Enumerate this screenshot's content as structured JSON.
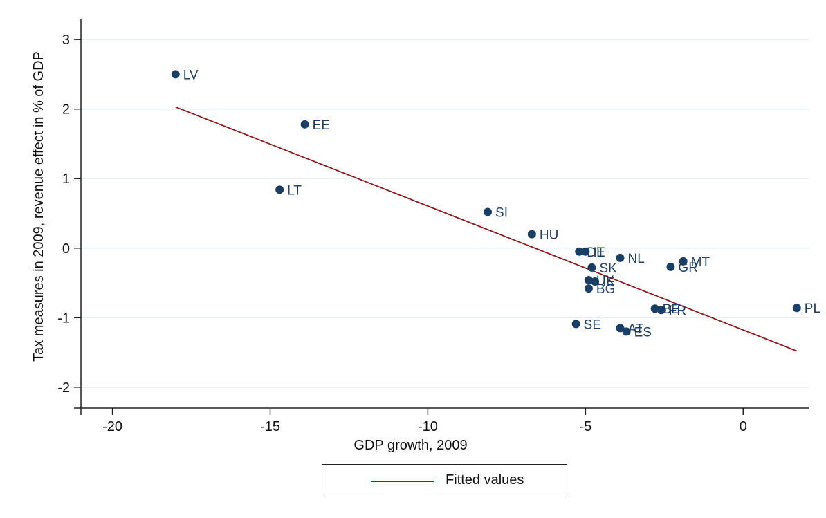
{
  "chart_data": {
    "type": "scatter",
    "title": "",
    "xlabel": "GDP growth, 2009",
    "ylabel": "Tax measures in 2009, revenue effect in % of GDP",
    "xlim": [
      -21,
      2.1
    ],
    "ylim": [
      -2.3,
      3.3
    ],
    "xticks": [
      -20,
      -15,
      -10,
      -5,
      0
    ],
    "yticks": [
      -2,
      -1,
      0,
      1,
      2,
      3
    ],
    "xtick_labels": [
      "-20",
      "-15",
      "-10",
      "-5",
      "0"
    ],
    "ytick_labels": [
      "-2",
      "-1",
      "0",
      "1",
      "2",
      "3"
    ],
    "grid": "horizontal",
    "marker_color": "#1a3f66",
    "label_color": "#1f3f66",
    "fit_color": "#8b1a1a",
    "points": [
      {
        "label": "LV",
        "x": -18.0,
        "y": 2.5
      },
      {
        "label": "EE",
        "x": -13.9,
        "y": 1.78
      },
      {
        "label": "LT",
        "x": -14.7,
        "y": 0.84
      },
      {
        "label": "SI",
        "x": -8.1,
        "y": 0.52
      },
      {
        "label": "HU",
        "x": -6.7,
        "y": 0.2
      },
      {
        "label": "DE",
        "x": -5.2,
        "y": -0.05
      },
      {
        "label": "IT",
        "x": -5.0,
        "y": -0.05
      },
      {
        "label": "NL",
        "x": -3.9,
        "y": -0.14
      },
      {
        "label": "MT",
        "x": -1.9,
        "y": -0.19
      },
      {
        "label": "GR",
        "x": -2.3,
        "y": -0.27
      },
      {
        "label": "SK",
        "x": -4.8,
        "y": -0.28
      },
      {
        "label": "UK",
        "x": -4.9,
        "y": -0.46
      },
      {
        "label": "IE",
        "x": -4.7,
        "y": -0.48
      },
      {
        "label": "BG",
        "x": -4.9,
        "y": -0.58
      },
      {
        "label": "BE",
        "x": -2.8,
        "y": -0.87
      },
      {
        "label": "FR",
        "x": -2.6,
        "y": -0.89
      },
      {
        "label": "PL",
        "x": 1.7,
        "y": -0.86
      },
      {
        "label": "SE",
        "x": -5.3,
        "y": -1.09
      },
      {
        "label": "AT",
        "x": -3.9,
        "y": -1.15
      },
      {
        "label": "ES",
        "x": -3.7,
        "y": -1.2
      }
    ],
    "series": [
      {
        "name": "Fitted values",
        "x": [
          -18.0,
          1.7
        ],
        "y": [
          2.03,
          -1.48
        ]
      }
    ],
    "legend": {
      "position": "bottom",
      "label": "Fitted values"
    }
  }
}
